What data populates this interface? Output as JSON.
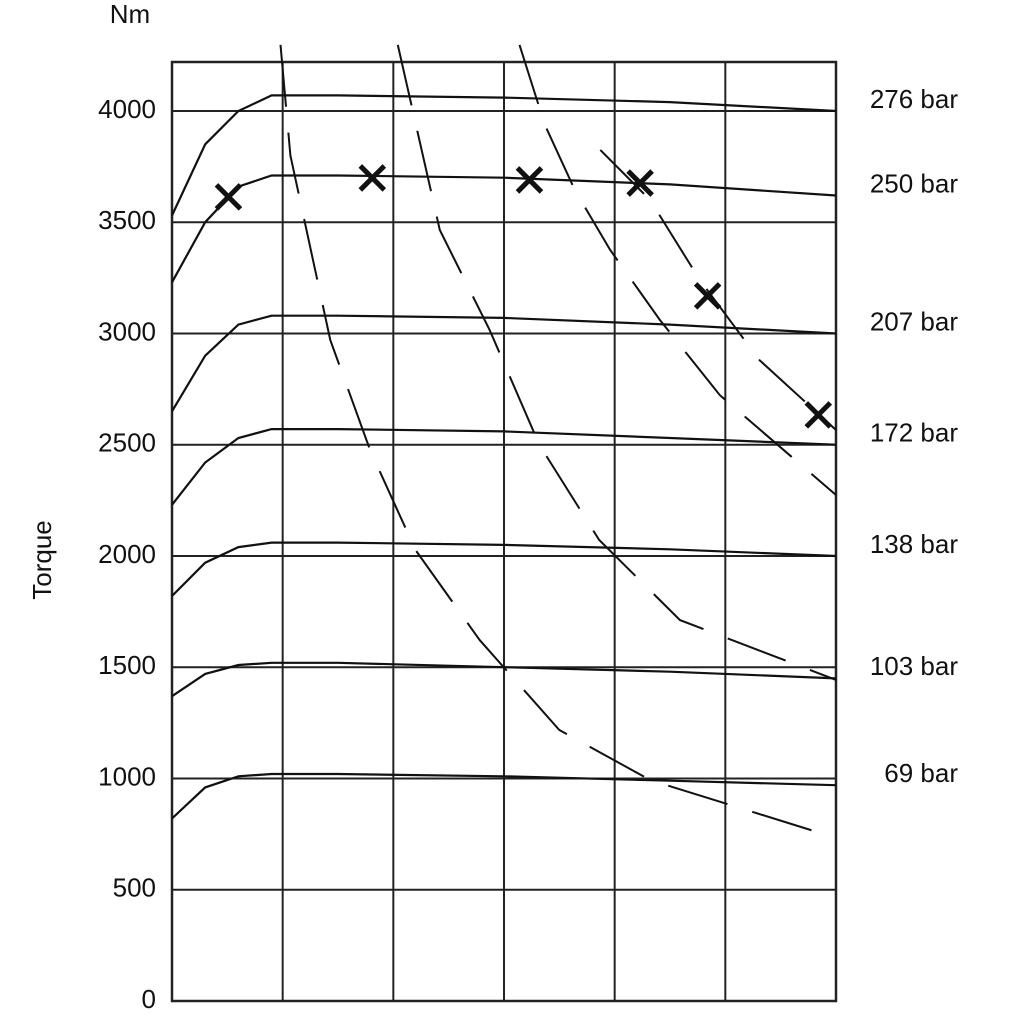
{
  "chart_data": {
    "type": "line",
    "y_unit": "Nm",
    "y_label": "Torque",
    "xlim": [
      0,
      6
    ],
    "xticks": [
      0,
      1,
      2,
      3,
      4,
      5,
      6
    ],
    "ylim": [
      0,
      4220
    ],
    "yticks": [
      0,
      500,
      1000,
      1500,
      2000,
      2500,
      3000,
      3500,
      4000
    ],
    "grid": true,
    "x": [
      0,
      0.3,
      0.6,
      0.9,
      1.5,
      3,
      4.5,
      6
    ],
    "series": [
      {
        "name": "276 bar",
        "color": "#111111",
        "values": [
          3530,
          3850,
          4000,
          4070,
          4070,
          4060,
          4040,
          4000
        ]
      },
      {
        "name": "250 bar",
        "color": "#111111",
        "values": [
          3230,
          3500,
          3660,
          3710,
          3710,
          3700,
          3670,
          3620
        ]
      },
      {
        "name": "207 bar",
        "color": "#111111",
        "values": [
          2650,
          2900,
          3040,
          3080,
          3080,
          3070,
          3040,
          3000
        ]
      },
      {
        "name": "172 bar",
        "color": "#111111",
        "values": [
          2230,
          2420,
          2530,
          2570,
          2570,
          2560,
          2530,
          2500
        ]
      },
      {
        "name": "138 bar",
        "color": "#111111",
        "values": [
          1820,
          1970,
          2040,
          2060,
          2060,
          2050,
          2030,
          2000
        ]
      },
      {
        "name": "103 bar",
        "color": "#111111",
        "values": [
          1370,
          1470,
          1510,
          1520,
          1520,
          1500,
          1480,
          1450
        ]
      },
      {
        "name": "69 bar",
        "color": "#111111",
        "values": [
          820,
          960,
          1010,
          1020,
          1020,
          1010,
          990,
          970
        ]
      }
    ],
    "power_curves": [
      {
        "x": [
          0.98,
          1.07,
          1.43,
          1.79,
          2.2,
          2.78,
          3.5,
          4.32,
          6
        ],
        "values": [
          4297,
          3800,
          2970,
          2476,
          2027,
          1622,
          1218,
          993,
          733
        ]
      },
      {
        "x": [
          2.04,
          2.42,
          2.87,
          3.32,
          3.86,
          4.59,
          6
        ],
        "values": [
          4297,
          3465,
          3016,
          2499,
          2072,
          1712,
          1443
        ]
      },
      {
        "x": [
          3.14,
          3.37,
          3.64,
          3.96,
          4.41,
          4.95,
          6
        ],
        "values": [
          4297,
          3937,
          3645,
          3375,
          3060,
          2723,
          2274
        ]
      },
      {
        "x": [
          3.87,
          4.32,
          4.77,
          5.31,
          6
        ],
        "values": [
          3825,
          3600,
          3240,
          2880,
          2566
        ]
      }
    ],
    "markers": {
      "x": [
        0.51,
        1.81,
        3.23,
        4.23,
        4.84,
        5.84
      ],
      "values": [
        3614,
        3699,
        3690,
        3676,
        3169,
        2634
      ]
    }
  }
}
